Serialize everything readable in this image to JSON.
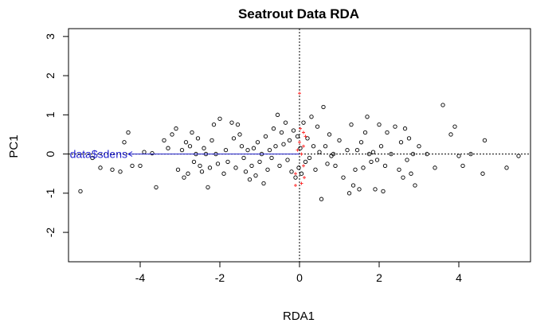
{
  "chart_data": {
    "type": "scatter",
    "title": "Seatrout Data RDA",
    "xlabel": "RDA1",
    "ylabel": "PC1",
    "xlim": [
      -5.8,
      5.8
    ],
    "ylim": [
      -2.75,
      3.2
    ],
    "xticks": [
      -4,
      -2,
      0,
      2,
      4
    ],
    "xtick_labels": [
      "-4",
      "-2",
      "0",
      "2",
      "4"
    ],
    "yticks": [
      -2,
      -1,
      0,
      1,
      2,
      3
    ],
    "ytick_labels": [
      "-2",
      "-1",
      "0",
      "1",
      "2",
      "3"
    ],
    "grid": false,
    "reference_lines": {
      "x": 0,
      "y": 0,
      "style": "dotted"
    },
    "colors": {
      "sites": "#000000",
      "species": "#ff3030",
      "biplot": "#2222cc"
    },
    "biplot_arrow": {
      "label": "data$sdens",
      "x": -4.3,
      "y": 0.0
    },
    "species": [
      {
        "x": 0.0,
        "y": 1.55
      },
      {
        "x": 0.02,
        "y": 0.65
      },
      {
        "x": 0.0,
        "y": 0.3
      },
      {
        "x": 0.05,
        "y": 0.0
      },
      {
        "x": 0.1,
        "y": 0.2
      },
      {
        "x": 0.1,
        "y": -0.3
      },
      {
        "x": -0.1,
        "y": -0.5
      },
      {
        "x": 0.05,
        "y": -0.75
      },
      {
        "x": -0.1,
        "y": -0.8
      },
      {
        "x": 0.15,
        "y": 0.45
      },
      {
        "x": 0.1,
        "y": 0.55
      },
      {
        "x": -0.05,
        "y": 0.1
      },
      {
        "x": 0.12,
        "y": -0.6
      }
    ],
    "sites": [
      {
        "x": -5.5,
        "y": -0.95
      },
      {
        "x": -5.2,
        "y": -0.1
      },
      {
        "x": -5.0,
        "y": -0.35
      },
      {
        "x": -4.7,
        "y": -0.4
      },
      {
        "x": -4.5,
        "y": -0.45
      },
      {
        "x": -4.4,
        "y": 0.3
      },
      {
        "x": -4.3,
        "y": 0.55
      },
      {
        "x": -4.2,
        "y": -0.3
      },
      {
        "x": -4.0,
        "y": -0.3
      },
      {
        "x": -3.9,
        "y": 0.05
      },
      {
        "x": -3.7,
        "y": 0.02
      },
      {
        "x": -3.6,
        "y": -0.85
      },
      {
        "x": -3.4,
        "y": 0.35
      },
      {
        "x": -3.3,
        "y": 0.15
      },
      {
        "x": -3.2,
        "y": 0.5
      },
      {
        "x": -3.1,
        "y": 0.65
      },
      {
        "x": -3.05,
        "y": -0.4
      },
      {
        "x": -2.95,
        "y": 0.1
      },
      {
        "x": -2.9,
        "y": -0.6
      },
      {
        "x": -2.85,
        "y": 0.3
      },
      {
        "x": -2.8,
        "y": -0.5
      },
      {
        "x": -2.75,
        "y": 0.2
      },
      {
        "x": -2.7,
        "y": 0.55
      },
      {
        "x": -2.65,
        "y": -0.2
      },
      {
        "x": -2.6,
        "y": 0.0
      },
      {
        "x": -2.55,
        "y": 0.4
      },
      {
        "x": -2.5,
        "y": -0.3
      },
      {
        "x": -2.45,
        "y": -0.45
      },
      {
        "x": -2.4,
        "y": 0.15
      },
      {
        "x": -2.35,
        "y": 0.0
      },
      {
        "x": -2.3,
        "y": -0.85
      },
      {
        "x": -2.25,
        "y": -0.35
      },
      {
        "x": -2.2,
        "y": 0.35
      },
      {
        "x": -2.15,
        "y": 0.75
      },
      {
        "x": -2.1,
        "y": 0.0
      },
      {
        "x": -2.05,
        "y": -0.25
      },
      {
        "x": -2.0,
        "y": 0.9
      },
      {
        "x": -1.9,
        "y": -0.5
      },
      {
        "x": -1.85,
        "y": 0.1
      },
      {
        "x": -1.8,
        "y": -0.2
      },
      {
        "x": -1.7,
        "y": 0.8
      },
      {
        "x": -1.65,
        "y": 0.4
      },
      {
        "x": -1.6,
        "y": -0.35
      },
      {
        "x": -1.55,
        "y": 0.75
      },
      {
        "x": -1.5,
        "y": 0.5
      },
      {
        "x": -1.45,
        "y": 0.2
      },
      {
        "x": -1.4,
        "y": -0.1
      },
      {
        "x": -1.35,
        "y": -0.45
      },
      {
        "x": -1.3,
        "y": 0.1
      },
      {
        "x": -1.25,
        "y": -0.65
      },
      {
        "x": -1.2,
        "y": -0.3
      },
      {
        "x": -1.15,
        "y": 0.15
      },
      {
        "x": -1.1,
        "y": -0.55
      },
      {
        "x": -1.05,
        "y": 0.3
      },
      {
        "x": -1.0,
        "y": -0.2
      },
      {
        "x": -0.95,
        "y": 0.0
      },
      {
        "x": -0.9,
        "y": -0.75
      },
      {
        "x": -0.85,
        "y": 0.45
      },
      {
        "x": -0.8,
        "y": -0.4
      },
      {
        "x": -0.75,
        "y": 0.1
      },
      {
        "x": -0.7,
        "y": -0.1
      },
      {
        "x": -0.65,
        "y": 0.65
      },
      {
        "x": -0.6,
        "y": 0.2
      },
      {
        "x": -0.55,
        "y": 1.0
      },
      {
        "x": -0.5,
        "y": -0.3
      },
      {
        "x": -0.45,
        "y": 0.55
      },
      {
        "x": -0.4,
        "y": 0.25
      },
      {
        "x": -0.35,
        "y": 0.8
      },
      {
        "x": -0.3,
        "y": -0.15
      },
      {
        "x": -0.25,
        "y": 0.35
      },
      {
        "x": -0.2,
        "y": -0.45
      },
      {
        "x": -0.15,
        "y": 0.6
      },
      {
        "x": -0.1,
        "y": -0.6
      },
      {
        "x": -0.05,
        "y": 0.45
      },
      {
        "x": -0.02,
        "y": -0.35
      },
      {
        "x": 0.02,
        "y": 0.15
      },
      {
        "x": 0.05,
        "y": -0.5
      },
      {
        "x": 0.1,
        "y": 0.8
      },
      {
        "x": 0.15,
        "y": -0.2
      },
      {
        "x": 0.2,
        "y": 0.4
      },
      {
        "x": 0.25,
        "y": -0.1
      },
      {
        "x": 0.3,
        "y": 0.95
      },
      {
        "x": 0.35,
        "y": 0.2
      },
      {
        "x": 0.4,
        "y": -0.4
      },
      {
        "x": 0.45,
        "y": 0.7
      },
      {
        "x": 0.5,
        "y": 0.05
      },
      {
        "x": 0.55,
        "y": -1.15
      },
      {
        "x": 0.6,
        "y": 1.2
      },
      {
        "x": 0.65,
        "y": 0.2
      },
      {
        "x": 0.7,
        "y": -0.25
      },
      {
        "x": 0.75,
        "y": 0.5
      },
      {
        "x": 0.8,
        "y": -0.05
      },
      {
        "x": 0.85,
        "y": 0.0
      },
      {
        "x": 0.9,
        "y": -0.3
      },
      {
        "x": 1.0,
        "y": 0.35
      },
      {
        "x": 1.1,
        "y": -0.6
      },
      {
        "x": 1.2,
        "y": 0.1
      },
      {
        "x": 1.25,
        "y": -1.0
      },
      {
        "x": 1.3,
        "y": 0.75
      },
      {
        "x": 1.35,
        "y": -0.8
      },
      {
        "x": 1.4,
        "y": -0.4
      },
      {
        "x": 1.45,
        "y": 0.1
      },
      {
        "x": 1.5,
        "y": -0.9
      },
      {
        "x": 1.55,
        "y": 0.3
      },
      {
        "x": 1.6,
        "y": -0.35
      },
      {
        "x": 1.65,
        "y": 0.55
      },
      {
        "x": 1.7,
        "y": 0.95
      },
      {
        "x": 1.75,
        "y": 0.0
      },
      {
        "x": 1.8,
        "y": -0.2
      },
      {
        "x": 1.85,
        "y": 0.05
      },
      {
        "x": 1.9,
        "y": -0.9
      },
      {
        "x": 1.95,
        "y": -0.15
      },
      {
        "x": 2.0,
        "y": 0.75
      },
      {
        "x": 2.05,
        "y": 0.2
      },
      {
        "x": 2.1,
        "y": -0.95
      },
      {
        "x": 2.15,
        "y": -0.3
      },
      {
        "x": 2.2,
        "y": 0.55
      },
      {
        "x": 2.3,
        "y": 0.0
      },
      {
        "x": 2.4,
        "y": 0.7
      },
      {
        "x": 2.5,
        "y": -0.4
      },
      {
        "x": 2.55,
        "y": 0.3
      },
      {
        "x": 2.6,
        "y": -0.6
      },
      {
        "x": 2.65,
        "y": 0.65
      },
      {
        "x": 2.7,
        "y": -0.15
      },
      {
        "x": 2.75,
        "y": 0.4
      },
      {
        "x": 2.8,
        "y": -0.5
      },
      {
        "x": 2.85,
        "y": 0.0
      },
      {
        "x": 2.9,
        "y": -0.8
      },
      {
        "x": 3.0,
        "y": 0.2
      },
      {
        "x": 3.2,
        "y": 0.0
      },
      {
        "x": 3.4,
        "y": -0.35
      },
      {
        "x": 3.6,
        "y": 1.25
      },
      {
        "x": 3.8,
        "y": 0.5
      },
      {
        "x": 3.9,
        "y": 0.7
      },
      {
        "x": 4.0,
        "y": -0.05
      },
      {
        "x": 4.1,
        "y": -0.3
      },
      {
        "x": 4.3,
        "y": 0.0
      },
      {
        "x": 4.6,
        "y": -0.5
      },
      {
        "x": 4.65,
        "y": 0.35
      },
      {
        "x": 5.2,
        "y": -0.35
      },
      {
        "x": 5.5,
        "y": -0.05
      }
    ]
  }
}
